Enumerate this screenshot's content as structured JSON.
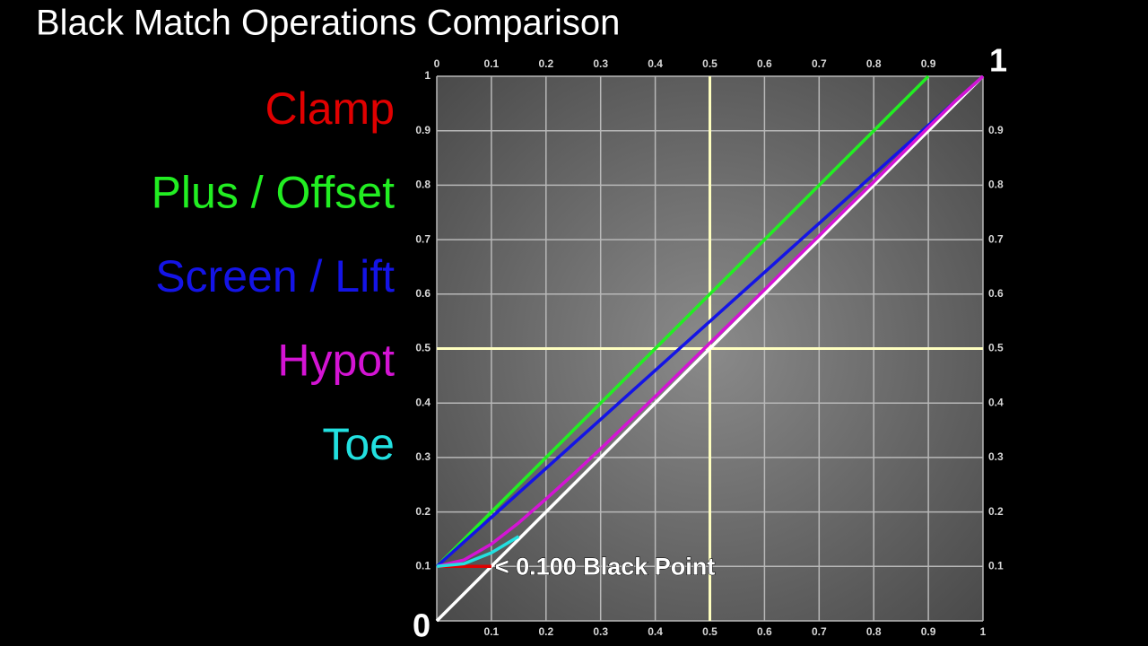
{
  "chart_data": {
    "type": "line",
    "title": "Black Match Operations Comparison",
    "x": [
      0,
      0.05,
      0.1,
      0.15,
      0.2,
      0.25,
      0.3,
      0.35,
      0.4,
      0.45,
      0.5,
      0.55,
      0.6,
      0.65,
      0.7,
      0.75,
      0.8,
      0.85,
      0.9,
      0.95,
      1
    ],
    "series": [
      {
        "color": "#ffffff",
        "values": [
          0,
          0.05,
          0.1,
          0.15,
          0.2,
          0.25,
          0.3,
          0.35,
          0.4,
          0.45,
          0.5,
          0.55,
          0.6,
          0.65,
          0.7,
          0.75,
          0.8,
          0.85,
          0.9,
          0.95,
          1
        ]
      },
      {
        "name": "Clamp",
        "color": "#e00000",
        "values": [
          0.1,
          0.1,
          0.1,
          null,
          null,
          null,
          null,
          null,
          null,
          null,
          null,
          null,
          null,
          null,
          null,
          null,
          null,
          null,
          null,
          null,
          null
        ]
      },
      {
        "name": "Plus / Offset",
        "color": "#22ee22",
        "values": [
          0.1,
          0.15,
          0.2,
          0.25,
          0.3,
          0.35,
          0.4,
          0.45,
          0.5,
          0.55,
          0.6,
          0.65,
          0.7,
          0.75,
          0.8,
          0.85,
          0.9,
          0.95,
          1,
          null,
          null
        ]
      },
      {
        "name": "Screen / Lift",
        "color": "#1414e6",
        "values": [
          0.1,
          0.145,
          0.19,
          0.235,
          0.28,
          0.325,
          0.37,
          0.415,
          0.46,
          0.505,
          0.55,
          0.595,
          0.64,
          0.685,
          0.73,
          0.775,
          0.82,
          0.865,
          0.91,
          0.955,
          1
        ]
      },
      {
        "name": "Hypot",
        "color": "#d414d4",
        "values": [
          0.1,
          0.112,
          0.141,
          0.18,
          0.224,
          0.269,
          0.316,
          0.364,
          0.412,
          0.461,
          0.51,
          0.559,
          0.608,
          0.658,
          0.707,
          0.757,
          0.806,
          0.856,
          0.906,
          0.955,
          1
        ]
      },
      {
        "name": "Toe",
        "color": "#22e0e0",
        "values": [
          0.1,
          0.105,
          0.125,
          0.155,
          null,
          null,
          null,
          null,
          null,
          null,
          null,
          null,
          null,
          null,
          null,
          null,
          null,
          null,
          null,
          null,
          null
        ]
      }
    ],
    "xlim": [
      0,
      1
    ],
    "ylim": [
      0,
      1
    ],
    "xticks": [
      0,
      0.1,
      0.2,
      0.3,
      0.4,
      0.5,
      0.6,
      0.7,
      0.8,
      0.9,
      1
    ],
    "yticks": [
      0,
      0.1,
      0.2,
      0.3,
      0.4,
      0.5,
      0.6,
      0.7,
      0.8,
      0.9,
      1
    ],
    "grid": true,
    "highlight_x": 0.5,
    "highlight_y": 0.5,
    "annotation": {
      "text": "< 0.100 Black Point",
      "x": 0.1,
      "y": 0.1
    }
  }
}
